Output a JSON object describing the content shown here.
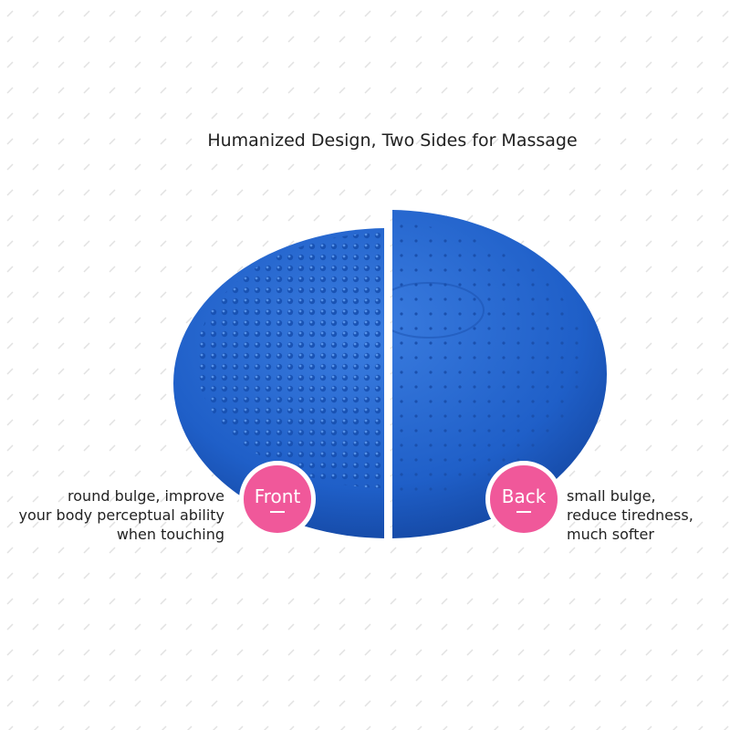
{
  "title": "Humanized Design, Two Sides for Massage",
  "front": {
    "badge": "Front",
    "lines": [
      "round bulge, improve",
      "your body perceptual ability",
      "when touching"
    ]
  },
  "back": {
    "badge": "Back",
    "lines": [
      "small bulge,",
      "reduce tiredness,",
      "much softer"
    ]
  },
  "colors": {
    "disc": "#1f5fc8",
    "badge": "#f0589a"
  }
}
